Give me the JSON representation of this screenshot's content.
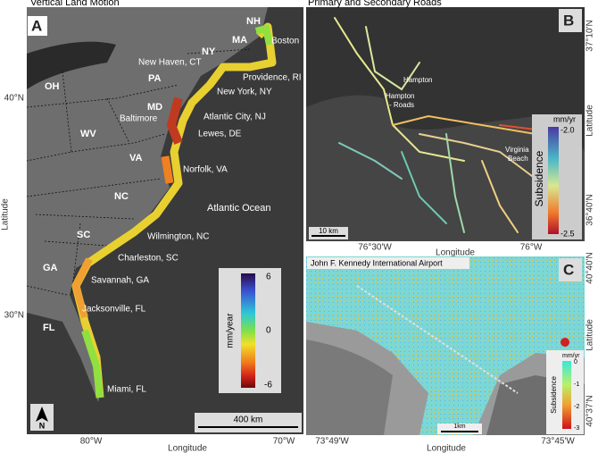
{
  "panel_a": {
    "title": "Vertical Land Motion",
    "letter": "A",
    "states": [
      "NH",
      "MA",
      "NY",
      "PA",
      "OH",
      "MD",
      "WV",
      "VA",
      "NC",
      "SC",
      "GA",
      "FL"
    ],
    "cities": [
      "Boston",
      "New Haven, CT",
      "Providence, RI",
      "New York, NY",
      "Baltimore",
      "Atlantic City, NJ",
      "Lewes, DE",
      "Norfolk, VA",
      "Wilmington, NC",
      "Charleston, SC",
      "Savannah, GA",
      "Jacksonville, FL",
      "Miami, FL"
    ],
    "ocean": "Atlantic Ocean",
    "legend": {
      "title": "mm/year",
      "ticks": [
        "6",
        "0",
        "-6"
      ]
    },
    "scale": "400 km",
    "north": "N",
    "lat_ticks": [
      "40°N",
      "30°N"
    ],
    "lon_ticks": [
      "80°W",
      "70°W"
    ],
    "xlabel": "Longitude",
    "ylabel": "Latitude"
  },
  "panel_b": {
    "title": "Primary and Secondary Roads",
    "letter": "B",
    "places": [
      "Hampton",
      "Hampton",
      "- Roads",
      "Virginia",
      "Beach"
    ],
    "legend": {
      "unit": "mm/yr",
      "title": "Subsidence",
      "ticks": [
        "-2.0",
        "-2.5"
      ]
    },
    "scale": "10 km",
    "lon_ticks": [
      "76°30'W",
      "76°W"
    ],
    "lat_ticks": [
      "37°10'N",
      "36°40'N"
    ],
    "xlabel": "Longitude",
    "ylabel": "Latitude"
  },
  "panel_c": {
    "title": "John F. Kennedy International Airport",
    "letter": "C",
    "legend": {
      "unit": "mm/yr",
      "title": "Subsidence",
      "ticks": [
        "0",
        "-1",
        "-2",
        "-3"
      ]
    },
    "scale": "1km",
    "lon_ticks": [
      "73°49'W",
      "73°45'W"
    ],
    "lat_ticks": [
      "40°40'N",
      "40°37'N"
    ],
    "xlabel": "Longitude",
    "ylabel": "Latitude"
  }
}
